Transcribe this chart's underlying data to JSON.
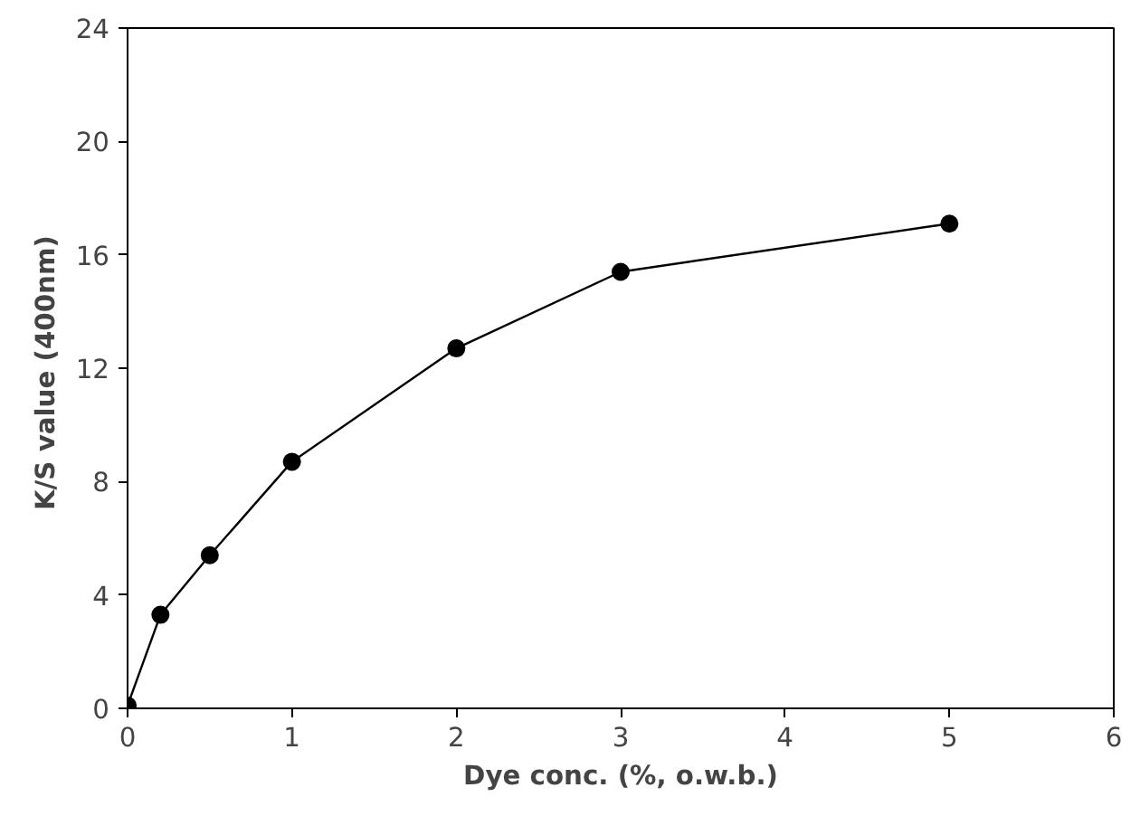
{
  "chart_data": {
    "type": "line",
    "xlabel": "Dye conc. (%, o.w.b.)",
    "ylabel": "K/S  value (400nm)",
    "x": [
      0,
      0.2,
      0.5,
      1,
      2,
      3,
      5
    ],
    "series": [
      {
        "color": "#000000",
        "values": [
          0.1,
          3.3,
          5.4,
          8.7,
          12.7,
          15.4,
          17.1
        ]
      }
    ],
    "xlim": [
      0,
      6
    ],
    "xticks": [
      0,
      1,
      2,
      3,
      4,
      5,
      6
    ],
    "ylim": [
      0,
      24
    ],
    "yticks": [
      0,
      4,
      8,
      12,
      16,
      20,
      24
    ],
    "marker": "circle",
    "line_style": "solid",
    "grid": false
  }
}
